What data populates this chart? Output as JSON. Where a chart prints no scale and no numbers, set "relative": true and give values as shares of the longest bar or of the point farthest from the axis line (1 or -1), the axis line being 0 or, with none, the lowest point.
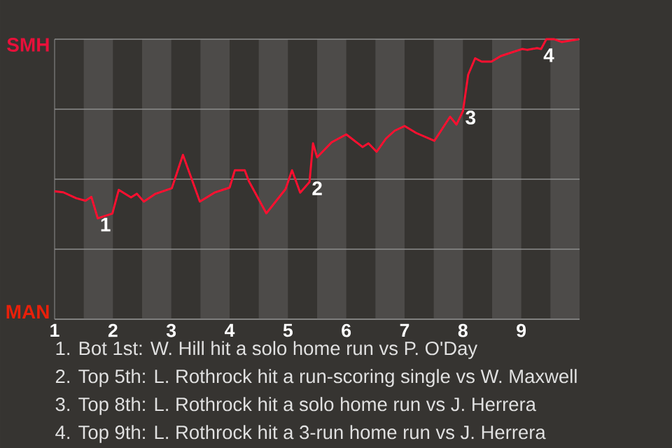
{
  "chart_data": {
    "type": "line",
    "relative": true,
    "x": [
      1,
      1.15,
      1.37,
      1.53,
      1.63,
      1.74,
      1.99,
      2.1,
      2.31,
      2.41,
      2.53,
      2.73,
      3.01,
      3.2,
      3.49,
      3.75,
      4,
      4.09,
      4.26,
      4.33,
      4.63,
      4.96,
      5.07,
      5.21,
      5.37,
      5.43,
      5.5,
      5.75,
      6,
      6.28,
      6.38,
      6.52,
      6.68,
      6.83,
      7,
      7.2,
      7.51,
      7.78,
      7.89,
      8,
      8.09,
      8.21,
      8.32,
      8.49,
      8.65,
      9.02,
      9.1,
      9.27,
      9.34,
      9.43,
      9.56,
      9.69,
      9.99
    ],
    "series": [
      {
        "color": "#ff1030",
        "values": [
          0.457,
          0.453,
          0.432,
          0.423,
          0.437,
          0.36,
          0.377,
          0.462,
          0.435,
          0.448,
          0.42,
          0.448,
          0.468,
          0.587,
          0.42,
          0.453,
          0.47,
          0.532,
          0.532,
          0.493,
          0.378,
          0.465,
          0.532,
          0.452,
          0.49,
          0.628,
          0.578,
          0.632,
          0.66,
          0.615,
          0.628,
          0.598,
          0.645,
          0.673,
          0.69,
          0.665,
          0.637,
          0.723,
          0.695,
          0.743,
          0.873,
          0.932,
          0.92,
          0.92,
          0.94,
          0.965,
          0.962,
          0.968,
          0.965,
          1,
          1,
          0.99,
          1
        ]
      }
    ],
    "xlim": [
      1,
      10
    ],
    "xticks": [
      1,
      2,
      3,
      4,
      5,
      6,
      7,
      8,
      9
    ],
    "grid": "y",
    "marker": "none",
    "line_style": "solid",
    "bands": [
      {
        "axis": "x",
        "from": 1.5,
        "to": 2,
        "color": "#4d4b49"
      },
      {
        "axis": "x",
        "from": 2.5,
        "to": 3,
        "color": "#4d4b49"
      },
      {
        "axis": "x",
        "from": 3.5,
        "to": 4,
        "color": "#4d4b49"
      },
      {
        "axis": "x",
        "from": 4.5,
        "to": 5,
        "color": "#4d4b49"
      },
      {
        "axis": "x",
        "from": 5.5,
        "to": 6,
        "color": "#4d4b49"
      },
      {
        "axis": "x",
        "from": 6.5,
        "to": 7,
        "color": "#4d4b49"
      },
      {
        "axis": "x",
        "from": 7.5,
        "to": 8,
        "color": "#4d4b49"
      },
      {
        "axis": "x",
        "from": 8.5,
        "to": 9,
        "color": "#4d4b49"
      },
      {
        "axis": "x",
        "from": 9.5,
        "to": 10,
        "color": "#4d4b49"
      }
    ],
    "annotations": [
      {
        "text": "1",
        "x": 1.74,
        "y": 0.36
      },
      {
        "text": "2",
        "x": 5.37,
        "y": 0.49
      },
      {
        "text": "3",
        "x": 8,
        "y": 0.743
      },
      {
        "text": "4",
        "x": 9.34,
        "y": 0.965
      },
      "SMH",
      "MAN",
      "1. Bot 1st: W. Hill hit a solo home run vs P. O'Day",
      "2. Top 5th: L. Rothrock hit a run-scoring single vs W. Maxwell",
      "3. Top 8th: L. Rothrock hit a solo home run vs J. Herrera",
      "4. Top 9th: L. Rothrock hit a 3-run home run vs J. Herrera"
    ]
  }
}
